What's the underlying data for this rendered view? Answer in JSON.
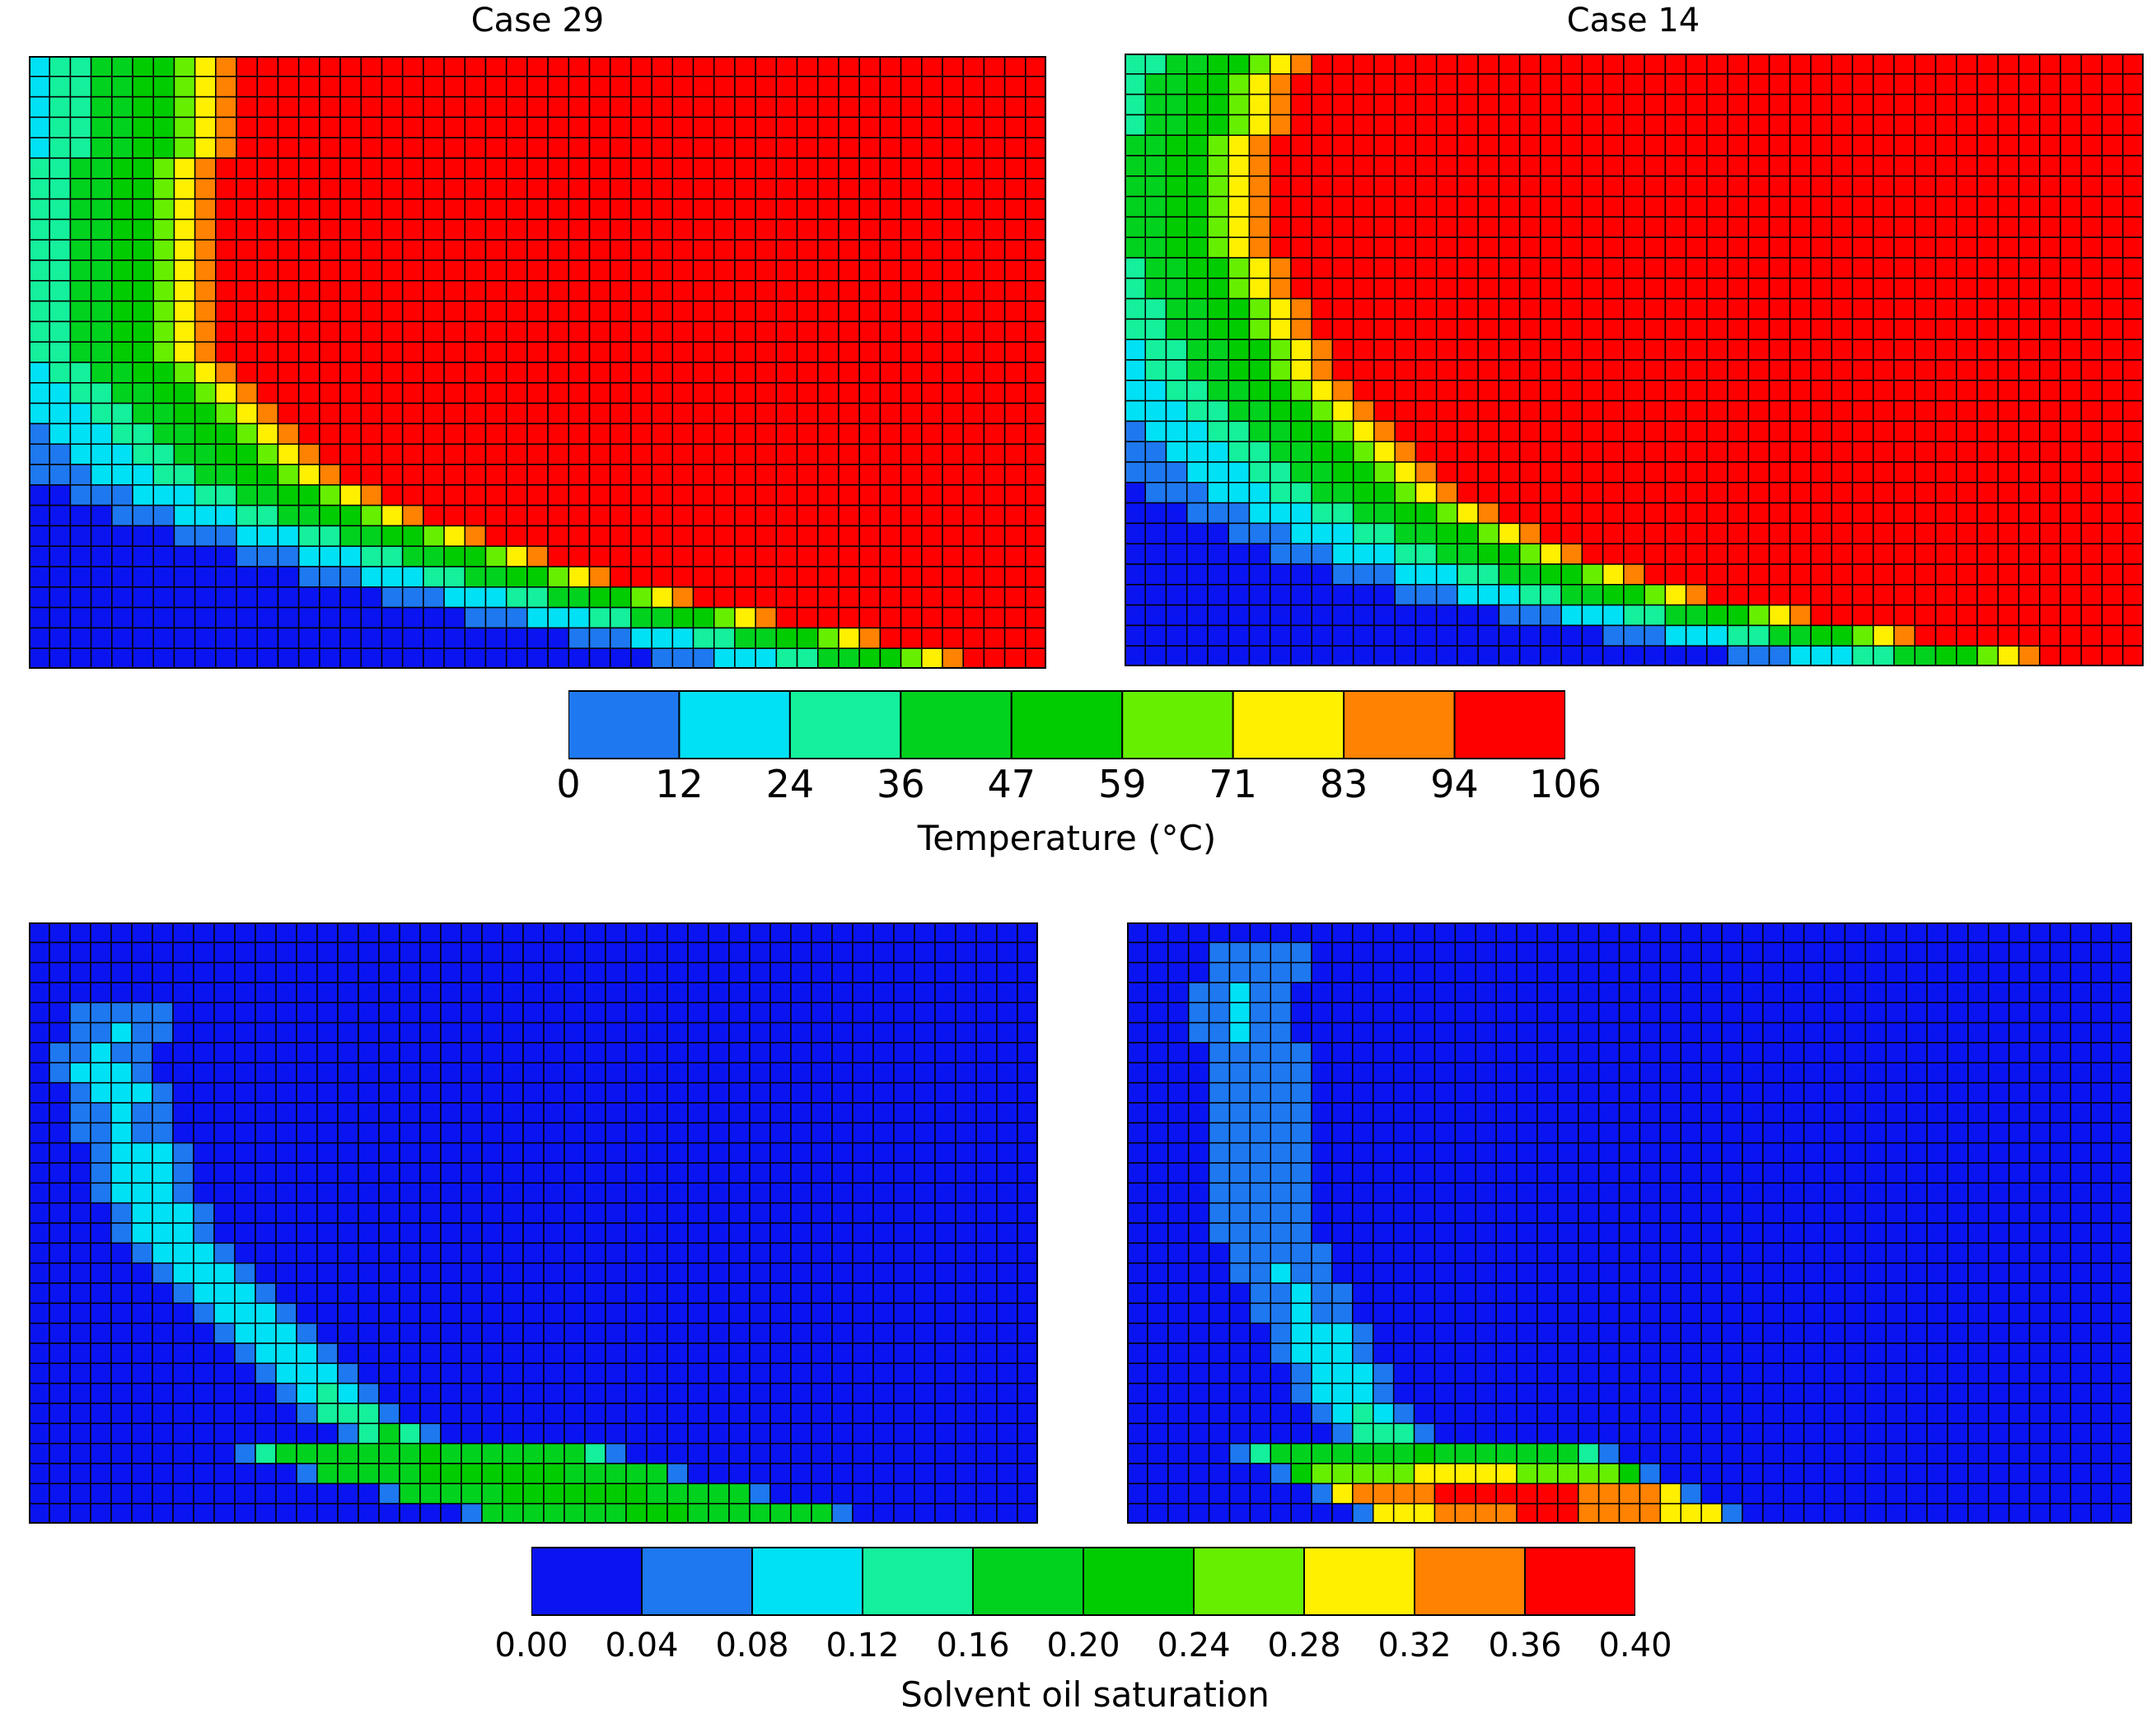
{
  "titles": {
    "left": "Case 29",
    "right": "Case 14"
  },
  "temperature_colorbar": {
    "label": "Temperature (°C)",
    "ticks": [
      "0",
      "12",
      "24",
      "36",
      "47",
      "59",
      "71",
      "83",
      "94",
      "106"
    ],
    "colors": [
      "#1E78F0",
      "#00E1F5",
      "#14F09B",
      "#00D21E",
      "#00CC00",
      "#66F000",
      "#FFF000",
      "#FF8200",
      "#FF0000"
    ]
  },
  "saturation_colorbar": {
    "label": "Solvent oil saturation",
    "ticks": [
      "0.00",
      "0.04",
      "0.08",
      "0.12",
      "0.16",
      "0.20",
      "0.24",
      "0.28",
      "0.32",
      "0.36",
      "0.40"
    ],
    "colors": [
      "#0A14F0",
      "#1E78F0",
      "#00E1F5",
      "#14F09B",
      "#00D21E",
      "#00CC00",
      "#66F000",
      "#FFF000",
      "#FF8200",
      "#FF0000"
    ]
  },
  "chart_data": [
    {
      "type": "heatmap",
      "title": "Case 29",
      "variable": "Temperature",
      "value_range": [
        0,
        106
      ],
      "grid": {
        "cols": 49,
        "rows": 30
      },
      "description_profile": "hot steam chamber (>94) fills upper-right; cold (<12) lower-left corner; warm bands curve from left column to bottom row",
      "front_profile_cols": [
        10,
        10,
        10,
        10,
        10,
        9,
        9,
        9,
        9,
        9,
        9,
        9,
        9,
        9,
        9,
        10,
        11,
        12,
        13,
        14,
        15,
        17,
        19,
        22,
        25,
        28,
        32,
        36,
        41,
        45
      ]
    },
    {
      "type": "heatmap",
      "title": "Case 14",
      "variable": "Temperature",
      "value_range": [
        0,
        106
      ],
      "grid": {
        "cols": 49,
        "rows": 30
      },
      "front_profile_cols": [
        9,
        8,
        8,
        8,
        7,
        7,
        7,
        7,
        7,
        7,
        8,
        8,
        9,
        9,
        10,
        10,
        11,
        12,
        13,
        14,
        15,
        16,
        18,
        20,
        22,
        25,
        28,
        33,
        38,
        44
      ]
    },
    {
      "type": "heatmap",
      "title": "",
      "variable": "Solvent oil saturation",
      "value_range": [
        0,
        0.4
      ],
      "grid": {
        "cols": 49,
        "rows": 30
      },
      "band_cols": [
        null,
        null,
        null,
        null,
        4,
        4,
        3,
        3,
        4,
        4,
        4,
        5,
        5,
        5,
        6,
        6,
        7,
        8,
        9,
        10,
        11,
        12,
        13,
        14,
        15,
        17,
        19,
        22,
        26,
        30
      ],
      "peak_values": [
        0.0,
        0.0,
        0.0,
        0.0,
        0.06,
        0.08,
        0.09,
        0.1,
        0.1,
        0.09,
        0.09,
        0.1,
        0.1,
        0.1,
        0.1,
        0.1,
        0.1,
        0.1,
        0.1,
        0.1,
        0.1,
        0.1,
        0.11,
        0.12,
        0.14,
        0.18,
        0.2,
        0.22,
        0.22,
        0.21
      ]
    },
    {
      "type": "heatmap",
      "title": "",
      "variable": "Solvent oil saturation",
      "value_range": [
        0,
        0.4
      ],
      "grid": {
        "cols": 49,
        "rows": 30
      },
      "band_cols": [
        null,
        6,
        6,
        5,
        5,
        5,
        6,
        6,
        6,
        6,
        6,
        6,
        6,
        6,
        6,
        6,
        7,
        7,
        8,
        8,
        9,
        9,
        10,
        10,
        11,
        12,
        14,
        16,
        18,
        20
      ],
      "peak_values": [
        0.0,
        0.06,
        0.07,
        0.08,
        0.08,
        0.08,
        0.07,
        0.07,
        0.07,
        0.06,
        0.06,
        0.06,
        0.06,
        0.06,
        0.06,
        0.06,
        0.07,
        0.08,
        0.09,
        0.09,
        0.1,
        0.1,
        0.1,
        0.11,
        0.12,
        0.14,
        0.2,
        0.3,
        0.4,
        0.38
      ]
    }
  ]
}
